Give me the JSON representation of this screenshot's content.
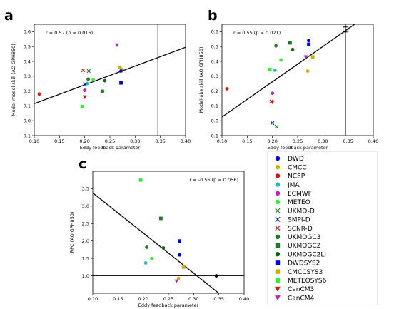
{
  "legend": {
    "entries": [
      {
        "label": "DWD",
        "marker": "circle",
        "color": "#0000dd"
      },
      {
        "label": "CMCC",
        "marker": "circle",
        "color": "#c8b400"
      },
      {
        "label": "NCEP",
        "marker": "circle",
        "color": "#dd1111"
      },
      {
        "label": "JMA",
        "marker": "circle",
        "color": "#22bbbb"
      },
      {
        "label": "ECMWF",
        "marker": "circle",
        "color": "#bb22bb"
      },
      {
        "label": "METEO",
        "marker": "circle",
        "color": "#33ee33"
      },
      {
        "label": "UKMO-D",
        "marker": "x",
        "color": "#118811"
      },
      {
        "label": "SMPI-D",
        "marker": "x",
        "color": "#1111cc"
      },
      {
        "label": "SCNR-D",
        "marker": "x",
        "color": "#dd1111"
      },
      {
        "label": "UKMOGC3",
        "marker": "circle",
        "color": "#227722"
      },
      {
        "label": "UKMOGC2",
        "marker": "square",
        "color": "#227722"
      },
      {
        "label": "UKMOGC2LI",
        "marker": "circle",
        "color": "#116611"
      },
      {
        "label": "DWDSYS2",
        "marker": "square",
        "color": "#0000dd"
      },
      {
        "label": "CMCCSYS3",
        "marker": "square",
        "color": "#c8b400"
      },
      {
        "label": "METEOSYS6",
        "marker": "square",
        "color": "#33ee33"
      },
      {
        "label": "CanCM3",
        "marker": "triangle-down",
        "color": "#dd1111"
      },
      {
        "label": "CanCM4",
        "marker": "triangle-down",
        "color": "#bb22bb"
      }
    ]
  },
  "chart_data": [
    {
      "type": "scatter",
      "panel": "a",
      "ylabel": "Model-model skill (AO GPH850)",
      "xlabel": "Eddy feedback parameter",
      "xlim": [
        0.1,
        0.4
      ],
      "ylim": [
        -0.1,
        0.65
      ],
      "xticks": [
        0.1,
        0.15,
        0.2,
        0.25,
        0.3,
        0.35,
        0.4
      ],
      "xtick_labels": [
        "0.10",
        "0.15",
        "0.20",
        "0.25",
        "0.30",
        "0.35",
        "0.40"
      ],
      "yticks": [
        -0.1,
        0.0,
        0.1,
        0.2,
        0.3,
        0.4,
        0.5,
        0.6
      ],
      "ytick_labels": [
        "−0.1",
        "0.0",
        "0.1",
        "0.2",
        "0.3",
        "0.4",
        "0.5",
        "0.6"
      ],
      "annotation": "r = 0.57 (p = 0.016)",
      "fit_line": {
        "x": [
          0.1,
          0.4
        ],
        "y": [
          0.115,
          0.495
        ]
      },
      "vline_x": 0.345,
      "points": [
        {
          "model": "NCEP",
          "marker": "circle",
          "color": "#dd1111",
          "x": 0.11,
          "y": 0.18
        },
        {
          "model": "SCNR-D",
          "marker": "x",
          "color": "#dd1111",
          "x": 0.197,
          "y": 0.34
        },
        {
          "model": "CanCM3",
          "marker": "triangle-down",
          "color": "#dd1111",
          "x": 0.2,
          "y": 0.16
        },
        {
          "model": "ECMWF",
          "marker": "circle",
          "color": "#bb22bb",
          "x": 0.2,
          "y": 0.205
        },
        {
          "model": "SMPI-D",
          "marker": "x",
          "color": "#1111cc",
          "x": 0.2,
          "y": 0.245
        },
        {
          "model": "JMA",
          "marker": "circle",
          "color": "#22bbbb",
          "x": 0.205,
          "y": 0.25
        },
        {
          "model": "UKMO-D",
          "marker": "x",
          "color": "#118811",
          "x": 0.208,
          "y": 0.335
        },
        {
          "model": "UKMOGC3",
          "marker": "circle",
          "color": "#227722",
          "x": 0.207,
          "y": 0.28
        },
        {
          "model": "METEO",
          "marker": "circle",
          "color": "#33ee33",
          "x": 0.217,
          "y": 0.275
        },
        {
          "model": "METEOSYS6",
          "marker": "square",
          "color": "#33ee33",
          "x": 0.195,
          "y": 0.095
        },
        {
          "model": "UKMOGC2",
          "marker": "square",
          "color": "#227722",
          "x": 0.235,
          "y": 0.198
        },
        {
          "model": "UKMOGC2LI",
          "marker": "circle",
          "color": "#116611",
          "x": 0.24,
          "y": 0.27
        },
        {
          "model": "CanCM4",
          "marker": "triangle-down",
          "color": "#bb22bb",
          "x": 0.264,
          "y": 0.51
        },
        {
          "model": "CMCC",
          "marker": "circle",
          "color": "#c8b400",
          "x": 0.27,
          "y": 0.36
        },
        {
          "model": "CMCCSYS3",
          "marker": "square",
          "color": "#c8b400",
          "x": 0.273,
          "y": 0.345
        },
        {
          "model": "DWD",
          "marker": "circle",
          "color": "#0000dd",
          "x": 0.272,
          "y": 0.335
        },
        {
          "model": "DWDSYS2",
          "marker": "square",
          "color": "#0000dd",
          "x": 0.272,
          "y": 0.255
        }
      ]
    },
    {
      "type": "scatter",
      "panel": "b",
      "ylabel": "Model-obs skill (AO GPH850)",
      "xlabel": "Eddy feedback parameter",
      "xlim": [
        0.1,
        0.4
      ],
      "ylim": [
        -0.1,
        0.65
      ],
      "xticks": [
        0.1,
        0.15,
        0.2,
        0.25,
        0.3,
        0.35,
        0.4
      ],
      "xtick_labels": [
        "0.10",
        "0.15",
        "0.20",
        "0.25",
        "0.30",
        "0.35",
        "0.40"
      ],
      "yticks": [
        -0.1,
        0.0,
        0.1,
        0.2,
        0.3,
        0.4,
        0.5,
        0.6
      ],
      "ytick_labels": [
        "−0.1",
        "0.0",
        "0.1",
        "0.2",
        "0.3",
        "0.4",
        "0.5",
        "0.6"
      ],
      "annotation": "r = 0.55 (p = 0.021)",
      "fit_line": {
        "x": [
          0.1,
          0.363
        ],
        "y": [
          0.025,
          0.65
        ]
      },
      "vline_x": 0.345,
      "obs_box": {
        "x": 0.345,
        "y": 0.615
      },
      "points": [
        {
          "model": "NCEP",
          "marker": "circle",
          "color": "#dd1111",
          "x": 0.11,
          "y": 0.215
        },
        {
          "model": "SCNR-D",
          "marker": "x",
          "color": "#dd1111",
          "x": 0.198,
          "y": 0.13
        },
        {
          "model": "CanCM3",
          "marker": "triangle-down",
          "color": "#dd1111",
          "x": 0.2,
          "y": 0.125
        },
        {
          "model": "ECMWF",
          "marker": "circle",
          "color": "#bb22bb",
          "x": 0.2,
          "y": 0.185
        },
        {
          "model": "SMPI-D",
          "marker": "x",
          "color": "#1111cc",
          "x": 0.2,
          "y": -0.015
        },
        {
          "model": "UKMO-D",
          "marker": "x",
          "color": "#118811",
          "x": 0.208,
          "y": -0.04
        },
        {
          "model": "METEOSYS6",
          "marker": "square",
          "color": "#33ee33",
          "x": 0.195,
          "y": 0.345
        },
        {
          "model": "JMA",
          "marker": "circle",
          "color": "#22bbbb",
          "x": 0.205,
          "y": 0.34
        },
        {
          "model": "UKMOGC3",
          "marker": "circle",
          "color": "#227722",
          "x": 0.207,
          "y": 0.505
        },
        {
          "model": "METEO",
          "marker": "circle",
          "color": "#33ee33",
          "x": 0.217,
          "y": 0.41
        },
        {
          "model": "UKMOGC2",
          "marker": "square",
          "color": "#227722",
          "x": 0.235,
          "y": 0.525
        },
        {
          "model": "UKMOGC2LI",
          "marker": "circle",
          "color": "#116611",
          "x": 0.24,
          "y": 0.48
        },
        {
          "model": "CanCM4",
          "marker": "triangle-down",
          "color": "#bb22bb",
          "x": 0.266,
          "y": 0.43
        },
        {
          "model": "CMCC",
          "marker": "circle",
          "color": "#c8b400",
          "x": 0.27,
          "y": 0.335
        },
        {
          "model": "CMCCSYS3",
          "marker": "square",
          "color": "#c8b400",
          "x": 0.28,
          "y": 0.43
        },
        {
          "model": "DWD",
          "marker": "circle",
          "color": "#0000dd",
          "x": 0.272,
          "y": 0.54
        },
        {
          "model": "DWDSYS2",
          "marker": "square",
          "color": "#0000dd",
          "x": 0.272,
          "y": 0.515
        }
      ]
    },
    {
      "type": "scatter",
      "panel": "c",
      "ylabel": "RPC (AO GPH850)",
      "xlabel": "Eddy feedback parameter",
      "xlim": [
        0.1,
        0.4
      ],
      "ylim": [
        0.5,
        4.0
      ],
      "xticks": [
        0.1,
        0.15,
        0.2,
        0.25,
        0.3,
        0.35,
        0.4
      ],
      "xtick_labels": [
        "0.10",
        "0.15",
        "0.20",
        "0.25",
        "0.30",
        "0.35",
        "0.40"
      ],
      "yticks": [
        1.0,
        1.5,
        2.0,
        2.5,
        3.0,
        3.5
      ],
      "ytick_labels": [
        "1.0",
        "1.5",
        "2.0",
        "2.5",
        "3.0",
        "3.5"
      ],
      "annotation": "r = -0.56 (p = 0.056)",
      "fit_line": {
        "x": [
          0.1,
          0.35
        ],
        "y": [
          3.38,
          0.5
        ]
      },
      "hline_y": 1.0,
      "points": [
        {
          "model": "METEOSYS6",
          "marker": "square",
          "color": "#33ee33",
          "x": 0.195,
          "y": 3.75
        },
        {
          "model": "UKMOGC3",
          "marker": "circle",
          "color": "#227722",
          "x": 0.207,
          "y": 1.82
        },
        {
          "model": "JMA",
          "marker": "circle",
          "color": "#22bbbb",
          "x": 0.205,
          "y": 1.37
        },
        {
          "model": "METEO",
          "marker": "circle",
          "color": "#33ee33",
          "x": 0.217,
          "y": 1.5
        },
        {
          "model": "UKMOGC2",
          "marker": "square",
          "color": "#227722",
          "x": 0.235,
          "y": 2.65
        },
        {
          "model": "UKMOGC2LI",
          "marker": "circle",
          "color": "#116611",
          "x": 0.24,
          "y": 1.8
        },
        {
          "model": "DWDSYS2",
          "marker": "square",
          "color": "#0000dd",
          "x": 0.272,
          "y": 2.0
        },
        {
          "model": "DWD",
          "marker": "circle",
          "color": "#0000dd",
          "x": 0.272,
          "y": 1.6
        },
        {
          "model": "CMCCSYS3",
          "marker": "square",
          "color": "#c8b400",
          "x": 0.28,
          "y": 1.25
        },
        {
          "model": "CMCC",
          "marker": "circle",
          "color": "#c8b400",
          "x": 0.27,
          "y": 0.93
        },
        {
          "model": "CanCM4",
          "marker": "triangle-down",
          "color": "#bb22bb",
          "x": 0.266,
          "y": 0.85
        },
        {
          "model": "Observed",
          "marker": "circle",
          "color": "#000000",
          "x": 0.345,
          "y": 1.0
        }
      ]
    }
  ]
}
